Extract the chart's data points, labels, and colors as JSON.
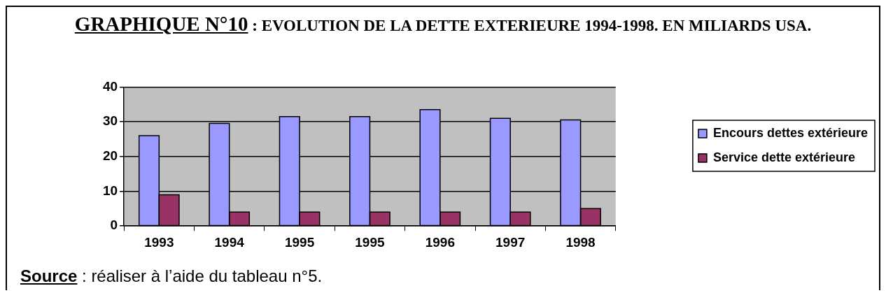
{
  "chart_data": {
    "type": "bar",
    "title": "GRAPHIQUE N°10 : EVOLUTION DE LA DETTE EXTERIEURE 1994-1998. EN MILIARDS USA.",
    "categories": [
      "1993",
      "1994",
      "1995",
      "1995",
      "1996",
      "1997",
      "1998"
    ],
    "series": [
      {
        "name": "Encours dettes extérieure",
        "color": "#9999ff",
        "values": [
          26,
          29.5,
          31.5,
          31.5,
          33.5,
          31,
          30.5
        ]
      },
      {
        "name": "Service dette extérieure",
        "color": "#993366",
        "values": [
          9,
          4,
          4,
          4,
          4,
          4,
          5
        ]
      }
    ],
    "ylim": [
      0,
      40
    ],
    "yticks": [
      0,
      10,
      20,
      30,
      40
    ],
    "grid": "y",
    "legend": "right",
    "annotations": [
      "Source : réaliser à l’aide du tableau n°5."
    ]
  }
}
